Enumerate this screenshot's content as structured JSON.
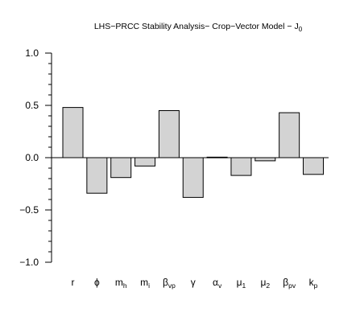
{
  "chart_data": {
    "type": "bar",
    "title": "LHS−PRCC Stability Analysis− Crop−Vector Model − J",
    "title_subscript": "0",
    "xlabel": "",
    "ylabel": "",
    "ylim": [
      -1.0,
      1.0
    ],
    "yticks_major": [
      1.0,
      0.5,
      0.0,
      -0.5,
      -1.0
    ],
    "ytick_labels": [
      "1.0",
      "0.5",
      "0.0",
      "−0.5",
      "−1.0"
    ],
    "yticks_minor_step": 0.1,
    "grid": false,
    "bar_fill": "#d3d3d3",
    "bar_stroke": "#000000",
    "categories": [
      {
        "base": "r",
        "sub": ""
      },
      {
        "base": "ϕ",
        "sub": ""
      },
      {
        "base": "m",
        "sub": "h"
      },
      {
        "base": "m",
        "sub": "i"
      },
      {
        "base": "β",
        "sub": "vp"
      },
      {
        "base": "γ",
        "sub": ""
      },
      {
        "base": "α",
        "sub": "v"
      },
      {
        "base": "μ",
        "sub": "1"
      },
      {
        "base": "μ",
        "sub": "2"
      },
      {
        "base": "β",
        "sub": "pv"
      },
      {
        "base": "k",
        "sub": "p"
      }
    ],
    "values": [
      0.48,
      -0.34,
      -0.19,
      -0.08,
      0.45,
      -0.38,
      0.005,
      -0.17,
      -0.03,
      0.43,
      -0.16
    ]
  }
}
